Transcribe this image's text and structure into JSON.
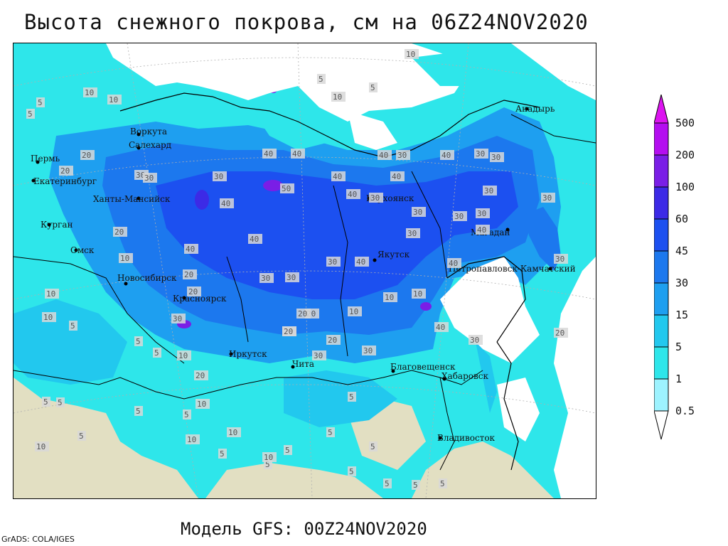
{
  "header": {
    "title": "Высота снежного покрова, см на 06Z24NOV2020"
  },
  "footer": {
    "model": "Модель GFS: 00Z24NOV2020",
    "credit": "GrADS: COLA/IGES"
  },
  "legend": {
    "levels": [
      "0.5",
      "1",
      "5",
      "15",
      "30",
      "45",
      "60",
      "100",
      "200",
      "500"
    ],
    "colors": [
      "#ffffff",
      "#9ef3ff",
      "#2ee6ea",
      "#22c8ee",
      "#1e9ff0",
      "#1c78ee",
      "#1c50f0",
      "#3c2ae6",
      "#7a1ee6",
      "#b40ef0",
      "#dc14f0"
    ]
  },
  "cities": [
    {
      "name": "Анадырь"
    },
    {
      "name": "Воркута"
    },
    {
      "name": "Салехард"
    },
    {
      "name": "Пермь"
    },
    {
      "name": "Екатеринбург"
    },
    {
      "name": "Ханты-Мансийск"
    },
    {
      "name": "Курган"
    },
    {
      "name": "Омск"
    },
    {
      "name": "Новосибирск"
    },
    {
      "name": "Красноярск"
    },
    {
      "name": "Иркутск"
    },
    {
      "name": "Чита"
    },
    {
      "name": "Якутск"
    },
    {
      "name": "Верхоянск"
    },
    {
      "name": "Магадан"
    },
    {
      "name": "Петропавловск-Камчатский"
    },
    {
      "name": "Благовещенск"
    },
    {
      "name": "Хабаровск"
    },
    {
      "name": "Владивосток"
    }
  ],
  "contour_labels": [
    "10",
    "5",
    "10",
    "5",
    "10",
    "5",
    "10",
    "5",
    "20",
    "20",
    "30",
    "30",
    "30",
    "40",
    "40",
    "40",
    "40",
    "50",
    "40",
    "30",
    "40",
    "30",
    "40",
    "40",
    "30",
    "30",
    "30",
    "30",
    "20",
    "20",
    "20",
    "10",
    "10",
    "10",
    "5",
    "5",
    "5",
    "10",
    "20",
    "30",
    "40",
    "40",
    "30",
    "30",
    "20",
    "20",
    "10",
    "10",
    "5",
    "5",
    "5",
    "5",
    "10",
    "5",
    "5",
    "5",
    "5",
    "10",
    "20",
    "20",
    "20",
    "30",
    "30",
    "40",
    "30",
    "30",
    "40",
    "40",
    "40",
    "30",
    "30",
    "30",
    "30",
    "20",
    "30",
    "10",
    "10",
    "10",
    "5",
    "5",
    "5",
    "10",
    "5",
    "5",
    "5",
    "5"
  ]
}
